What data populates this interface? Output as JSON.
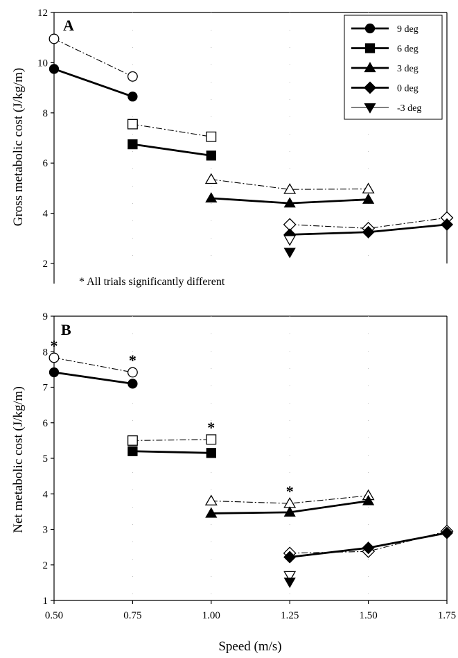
{
  "chart_data": [
    {
      "type": "line",
      "panel_label": "A",
      "xlabel": "",
      "ylabel": "Gross metabolic cost (J/kg/m)",
      "xlim": [
        0.5,
        1.75
      ],
      "ylim": [
        2,
        12
      ],
      "yticks": [
        "2",
        "4",
        "6",
        "8",
        "10",
        "12"
      ],
      "grid": "vertical dotted",
      "legend_position": "top-right",
      "legend": [
        "9 deg",
        "6 deg",
        "3 deg",
        "0 deg",
        "-3 deg"
      ],
      "annotation": "* All trials significantly different",
      "series": [
        {
          "name": "9 deg",
          "marker": "circle",
          "x": [
            0.5,
            0.75
          ],
          "gross": [
            9.75,
            8.65
          ],
          "net": [
            10.95,
            9.45
          ]
        },
        {
          "name": "6 deg",
          "marker": "square",
          "x": [
            0.75,
            1.0
          ],
          "gross": [
            6.75,
            6.3
          ],
          "net": [
            7.55,
            7.05
          ]
        },
        {
          "name": "3 deg",
          "marker": "triangle-up",
          "x": [
            1.0,
            1.25,
            1.5
          ],
          "gross": [
            4.6,
            4.4,
            4.55
          ],
          "net": [
            5.35,
            4.95,
            4.97
          ]
        },
        {
          "name": "0 deg",
          "marker": "diamond",
          "x": [
            1.25,
            1.5,
            1.75
          ],
          "gross": [
            3.15,
            3.25,
            3.55
          ],
          "net": [
            3.55,
            3.4,
            3.82
          ]
        },
        {
          "name": "-3 deg",
          "marker": "triangle-down",
          "x": [
            1.25
          ],
          "gross": [
            2.45
          ],
          "net": [
            2.95
          ]
        }
      ]
    },
    {
      "type": "line",
      "panel_label": "B",
      "xlabel": "Speed (m/s)",
      "ylabel": "Net metabolic cost (J/kg/m)",
      "xlim": [
        0.5,
        1.75
      ],
      "ylim": [
        1,
        9
      ],
      "xticks": [
        "0.50",
        "0.75",
        "1.00",
        "1.25",
        "1.50",
        "1.75"
      ],
      "yticks": [
        "1",
        "2",
        "3",
        "4",
        "5",
        "6",
        "7",
        "8",
        "9"
      ],
      "grid": "vertical dotted",
      "significance_marker": "*",
      "significant_x": [
        0.5,
        0.75,
        1.0,
        1.25
      ],
      "series": [
        {
          "name": "9 deg",
          "marker": "circle",
          "x": [
            0.5,
            0.75
          ],
          "gross": [
            7.42,
            7.1
          ],
          "net": [
            7.83,
            7.42
          ]
        },
        {
          "name": "6 deg",
          "marker": "square",
          "x": [
            0.75,
            1.0
          ],
          "gross": [
            5.2,
            5.15
          ],
          "net": [
            5.5,
            5.53
          ]
        },
        {
          "name": "3 deg",
          "marker": "triangle-up",
          "x": [
            1.0,
            1.25,
            1.5
          ],
          "gross": [
            3.45,
            3.48,
            3.8
          ],
          "net": [
            3.8,
            3.73,
            3.95
          ]
        },
        {
          "name": "0 deg",
          "marker": "diamond",
          "x": [
            1.25,
            1.5,
            1.75
          ],
          "gross": [
            2.22,
            2.48,
            2.9
          ],
          "net": [
            2.33,
            2.38,
            2.95
          ]
        },
        {
          "name": "-3 deg",
          "marker": "triangle-down",
          "x": [
            1.25
          ],
          "gross": [
            1.52
          ],
          "net": [
            1.7
          ]
        }
      ]
    }
  ]
}
